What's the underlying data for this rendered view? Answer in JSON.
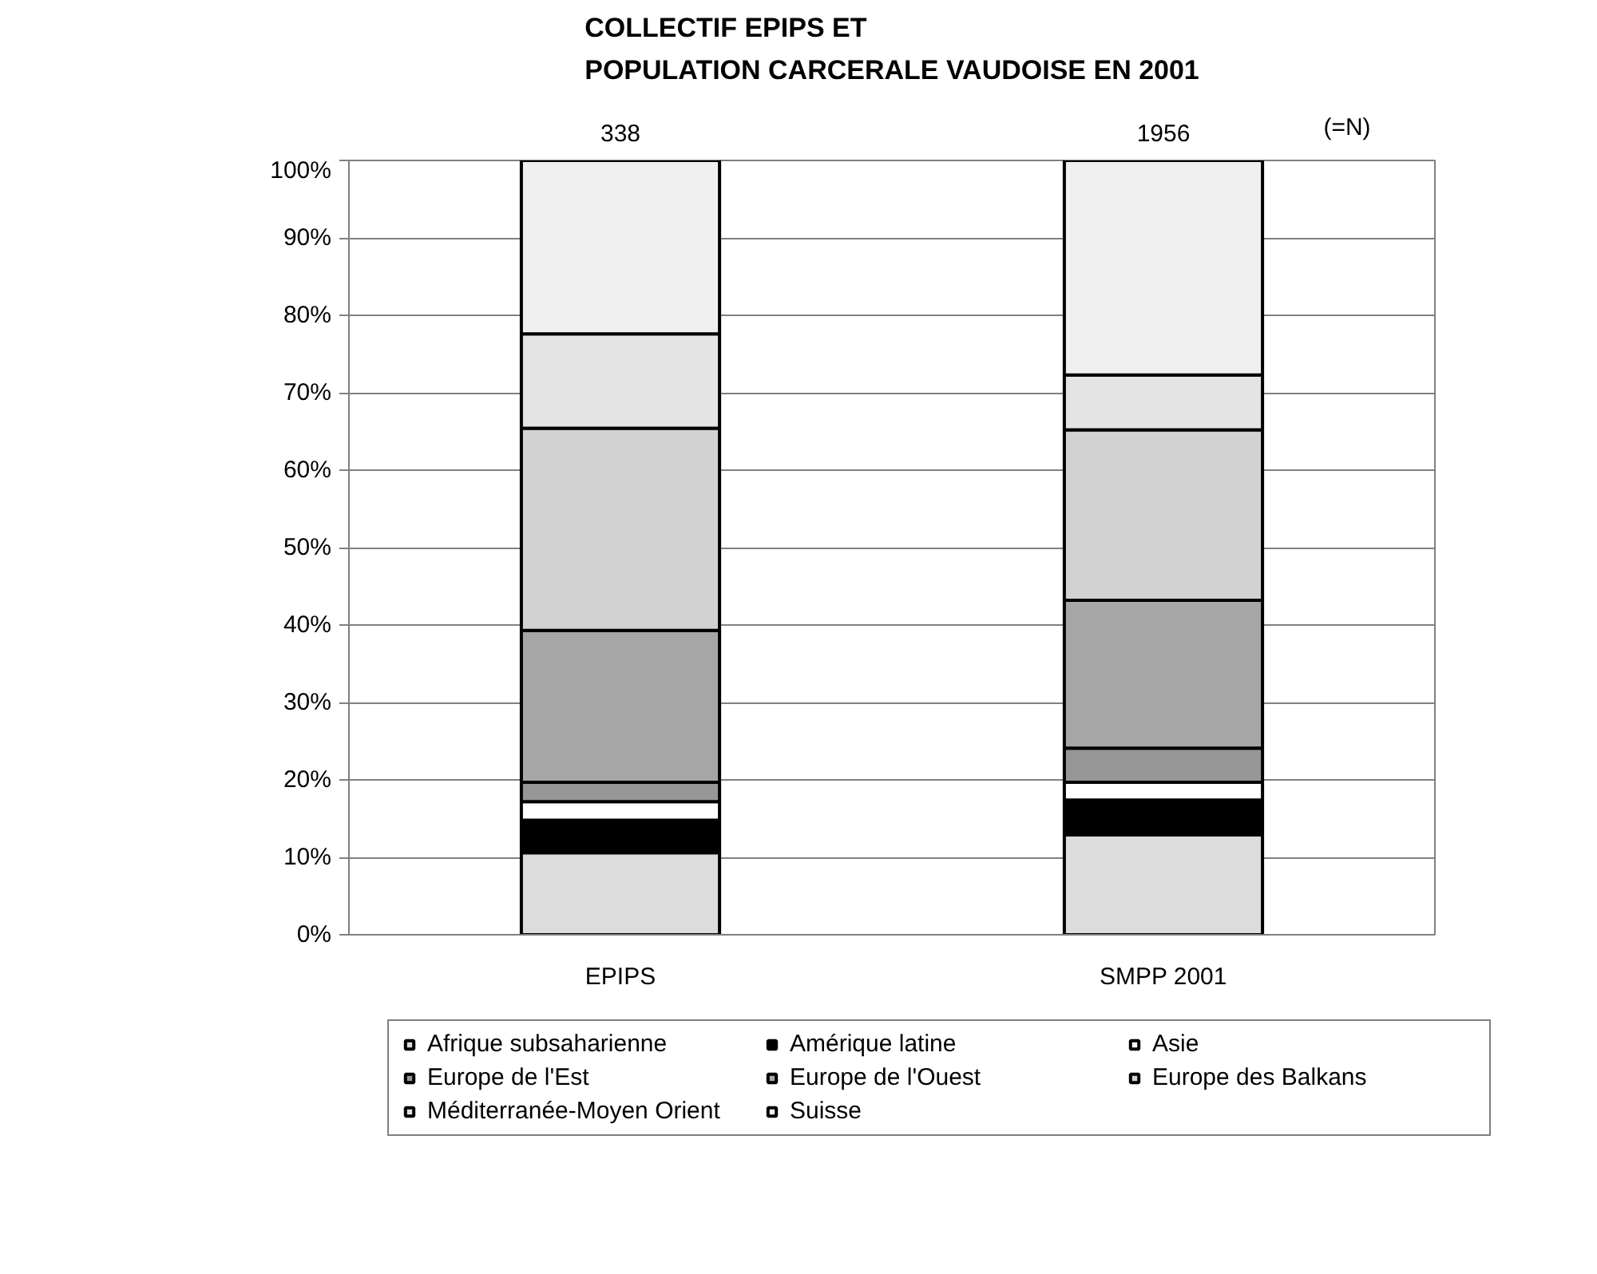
{
  "chart_data": {
    "type": "bar",
    "stacked": true,
    "title": "COLLECTIF EPIPS ET\nPOPULATION CARCERALE VAUDOISE EN 2001",
    "categories": [
      "EPIPS",
      "SMPP 2001"
    ],
    "series": [
      {
        "name": "Afrique subsaharienne",
        "color": "#dcdcdc",
        "values": [
          10.6,
          12.9
        ]
      },
      {
        "name": "Amérique latine",
        "color": "#000000",
        "values": [
          4.2,
          4.5
        ]
      },
      {
        "name": "Asie",
        "color": "#ffffff",
        "values": [
          2.4,
          2.3
        ]
      },
      {
        "name": "Europe de l'Est",
        "color": "#969696",
        "values": [
          2.5,
          4.4
        ]
      },
      {
        "name": "Europe de l'Ouest",
        "color": "#a6a6a6",
        "values": [
          19.6,
          19.1
        ]
      },
      {
        "name": "Europe des Balkans",
        "color": "#d2d2d2",
        "values": [
          26.1,
          22.0
        ]
      },
      {
        "name": "Méditerranée-Moyen Orient",
        "color": "#e4e4e4",
        "values": [
          12.2,
          7.1
        ]
      },
      {
        "name": "Suisse",
        "color": "#f0f0f0",
        "values": [
          22.4,
          27.7
        ]
      }
    ],
    "ylim": [
      0,
      100
    ],
    "yticks": [
      {
        "value": 0,
        "label": "0%"
      },
      {
        "value": 10,
        "label": "10%"
      },
      {
        "value": 20,
        "label": "20%"
      },
      {
        "value": 30,
        "label": "30%"
      },
      {
        "value": 40,
        "label": "40%"
      },
      {
        "value": 50,
        "label": "50%"
      },
      {
        "value": 60,
        "label": "60%"
      },
      {
        "value": 70,
        "label": "70%"
      },
      {
        "value": 80,
        "label": "80%"
      },
      {
        "value": 90,
        "label": "90%"
      },
      {
        "value": 100,
        "label": "100%"
      }
    ],
    "annotations": [
      "338",
      "1956",
      "(=N)"
    ],
    "grid": "y",
    "legend": "bottom"
  }
}
